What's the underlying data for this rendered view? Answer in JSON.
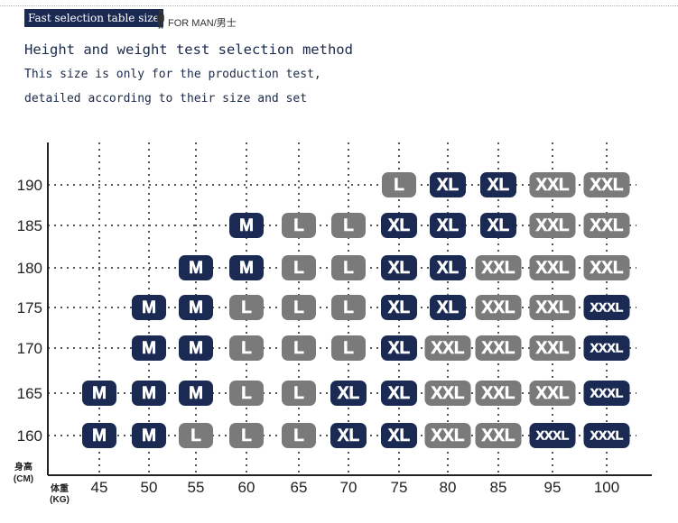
{
  "header": {
    "label": "Fast selection table size",
    "icon": "person-icon",
    "sub_label": "FOR MAN/男士"
  },
  "intro": {
    "title": "Height and weight test selection method",
    "line1": "This size is only for the production test,",
    "line2": "detailed according to their size and set"
  },
  "colors": {
    "dark": "#1b2a52",
    "gray": "#7a7a7a",
    "axis": "#222222",
    "grid": "#555555"
  },
  "chart_data": {
    "type": "table",
    "xlabel_lines": [
      "体重",
      "(KG)"
    ],
    "ylabel_lines": [
      "身高",
      "(CM)"
    ],
    "x": [
      45,
      50,
      55,
      60,
      65,
      70,
      75,
      80,
      85,
      95,
      100
    ],
    "y": [
      160,
      165,
      170,
      175,
      180,
      185,
      190
    ],
    "grid": true,
    "cells": [
      {
        "x": 45,
        "y": 160,
        "size": "M",
        "style": "dark"
      },
      {
        "x": 50,
        "y": 160,
        "size": "M",
        "style": "dark"
      },
      {
        "x": 55,
        "y": 160,
        "size": "L",
        "style": "gray"
      },
      {
        "x": 60,
        "y": 160,
        "size": "L",
        "style": "gray"
      },
      {
        "x": 65,
        "y": 160,
        "size": "L",
        "style": "gray"
      },
      {
        "x": 70,
        "y": 160,
        "size": "XL",
        "style": "dark"
      },
      {
        "x": 75,
        "y": 160,
        "size": "XL",
        "style": "dark"
      },
      {
        "x": 80,
        "y": 160,
        "size": "XXL",
        "style": "gray"
      },
      {
        "x": 85,
        "y": 160,
        "size": "XXL",
        "style": "gray"
      },
      {
        "x": 95,
        "y": 160,
        "size": "XXXL",
        "style": "dark"
      },
      {
        "x": 100,
        "y": 160,
        "size": "XXXL",
        "style": "dark"
      },
      {
        "x": 45,
        "y": 165,
        "size": "M",
        "style": "dark"
      },
      {
        "x": 50,
        "y": 165,
        "size": "M",
        "style": "dark"
      },
      {
        "x": 55,
        "y": 165,
        "size": "M",
        "style": "dark"
      },
      {
        "x": 60,
        "y": 165,
        "size": "L",
        "style": "gray"
      },
      {
        "x": 65,
        "y": 165,
        "size": "L",
        "style": "gray"
      },
      {
        "x": 70,
        "y": 165,
        "size": "XL",
        "style": "dark"
      },
      {
        "x": 75,
        "y": 165,
        "size": "XL",
        "style": "dark"
      },
      {
        "x": 80,
        "y": 165,
        "size": "XXL",
        "style": "gray"
      },
      {
        "x": 85,
        "y": 165,
        "size": "XXL",
        "style": "gray"
      },
      {
        "x": 95,
        "y": 165,
        "size": "XXL",
        "style": "gray"
      },
      {
        "x": 100,
        "y": 165,
        "size": "XXXL",
        "style": "dark"
      },
      {
        "x": 50,
        "y": 170,
        "size": "M",
        "style": "dark"
      },
      {
        "x": 55,
        "y": 170,
        "size": "M",
        "style": "dark"
      },
      {
        "x": 60,
        "y": 170,
        "size": "L",
        "style": "gray"
      },
      {
        "x": 65,
        "y": 170,
        "size": "L",
        "style": "gray"
      },
      {
        "x": 70,
        "y": 170,
        "size": "L",
        "style": "gray"
      },
      {
        "x": 75,
        "y": 170,
        "size": "XL",
        "style": "dark"
      },
      {
        "x": 80,
        "y": 170,
        "size": "XXL",
        "style": "gray"
      },
      {
        "x": 85,
        "y": 170,
        "size": "XXL",
        "style": "gray"
      },
      {
        "x": 95,
        "y": 170,
        "size": "XXL",
        "style": "gray"
      },
      {
        "x": 100,
        "y": 170,
        "size": "XXXL",
        "style": "dark"
      },
      {
        "x": 50,
        "y": 175,
        "size": "M",
        "style": "dark"
      },
      {
        "x": 55,
        "y": 175,
        "size": "M",
        "style": "dark"
      },
      {
        "x": 60,
        "y": 175,
        "size": "L",
        "style": "gray"
      },
      {
        "x": 65,
        "y": 175,
        "size": "L",
        "style": "gray"
      },
      {
        "x": 70,
        "y": 175,
        "size": "L",
        "style": "gray"
      },
      {
        "x": 75,
        "y": 175,
        "size": "XL",
        "style": "dark"
      },
      {
        "x": 80,
        "y": 175,
        "size": "XL",
        "style": "dark"
      },
      {
        "x": 85,
        "y": 175,
        "size": "XXL",
        "style": "gray"
      },
      {
        "x": 95,
        "y": 175,
        "size": "XXL",
        "style": "gray"
      },
      {
        "x": 100,
        "y": 175,
        "size": "XXXL",
        "style": "dark"
      },
      {
        "x": 55,
        "y": 180,
        "size": "M",
        "style": "dark"
      },
      {
        "x": 60,
        "y": 180,
        "size": "M",
        "style": "dark"
      },
      {
        "x": 65,
        "y": 180,
        "size": "L",
        "style": "gray"
      },
      {
        "x": 70,
        "y": 180,
        "size": "L",
        "style": "gray"
      },
      {
        "x": 75,
        "y": 180,
        "size": "XL",
        "style": "dark"
      },
      {
        "x": 80,
        "y": 180,
        "size": "XL",
        "style": "dark"
      },
      {
        "x": 85,
        "y": 180,
        "size": "XXL",
        "style": "gray"
      },
      {
        "x": 95,
        "y": 180,
        "size": "XXL",
        "style": "gray"
      },
      {
        "x": 100,
        "y": 180,
        "size": "XXL",
        "style": "gray"
      },
      {
        "x": 60,
        "y": 185,
        "size": "M",
        "style": "dark"
      },
      {
        "x": 65,
        "y": 185,
        "size": "L",
        "style": "gray"
      },
      {
        "x": 70,
        "y": 185,
        "size": "L",
        "style": "gray"
      },
      {
        "x": 75,
        "y": 185,
        "size": "XL",
        "style": "dark"
      },
      {
        "x": 80,
        "y": 185,
        "size": "XL",
        "style": "dark"
      },
      {
        "x": 85,
        "y": 185,
        "size": "XL",
        "style": "dark"
      },
      {
        "x": 95,
        "y": 185,
        "size": "XXL",
        "style": "gray"
      },
      {
        "x": 100,
        "y": 185,
        "size": "XXL",
        "style": "gray"
      },
      {
        "x": 75,
        "y": 190,
        "size": "L",
        "style": "gray"
      },
      {
        "x": 80,
        "y": 190,
        "size": "XL",
        "style": "dark"
      },
      {
        "x": 85,
        "y": 190,
        "size": "XL",
        "style": "dark"
      },
      {
        "x": 95,
        "y": 190,
        "size": "XXL",
        "style": "gray"
      },
      {
        "x": 100,
        "y": 190,
        "size": "XXL",
        "style": "gray"
      }
    ]
  }
}
